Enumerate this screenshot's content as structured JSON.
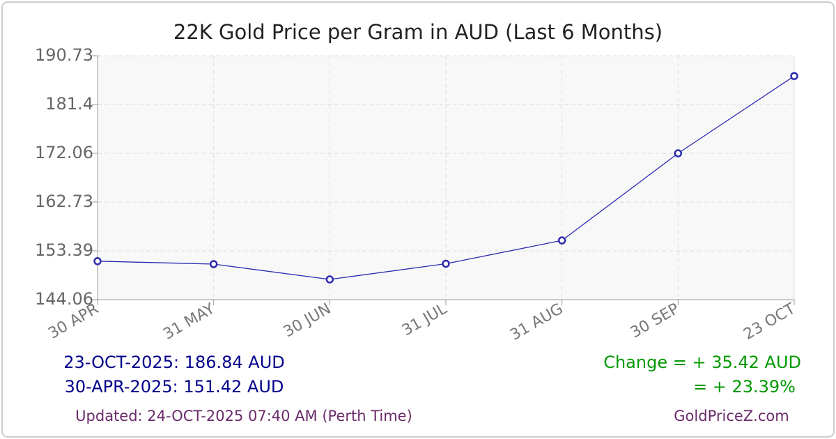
{
  "chart_data": {
    "type": "line",
    "title": "22K Gold Price per Gram in AUD (Last 6 Months)",
    "categories": [
      "30 APR",
      "31 MAY",
      "30 JUN",
      "31 JUL",
      "31 AUG",
      "30 SEP",
      "23 OCT"
    ],
    "values": [
      151.42,
      150.86,
      147.93,
      150.93,
      155.39,
      172.06,
      186.84
    ],
    "color": "#2b2bb0",
    "ylim": [
      144.06,
      190.73
    ],
    "yticks": [
      144.06,
      153.39,
      162.73,
      172.06,
      181.4,
      190.73
    ],
    "grid": true
  },
  "footer": {
    "latest": "23-OCT-2025: 186.84 AUD",
    "earliest": "30-APR-2025: 151.42 AUD",
    "change_amount": "Change = + 35.42 AUD",
    "change_percent": "= + 23.39%",
    "updated": "Updated: 24-OCT-2025 07:40 AM (Perth Time)",
    "site": "GoldPriceZ.com"
  }
}
